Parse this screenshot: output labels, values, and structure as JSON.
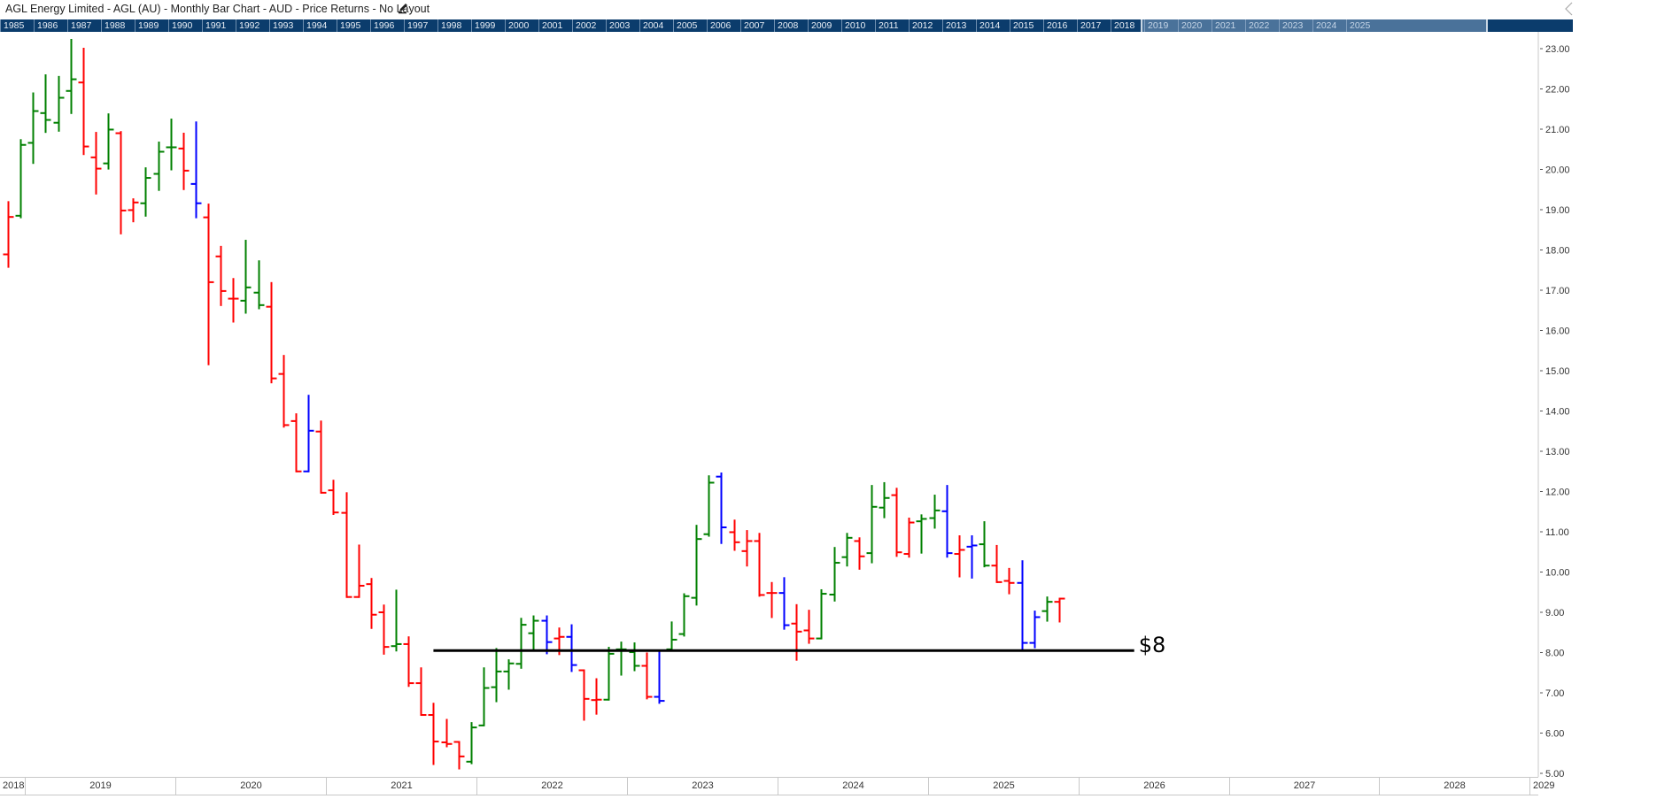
{
  "header": {
    "title": "AGL Energy Limited - AGL (AU) - Monthly Bar Chart - AUD - Price Returns - No Layout",
    "edit_icon": "pencil-icon",
    "collapse_icon": "chevron-left-icon"
  },
  "navigator": {
    "years": [
      "1985",
      "1986",
      "1987",
      "1988",
      "1989",
      "1990",
      "1991",
      "1992",
      "1993",
      "1994",
      "1995",
      "1996",
      "1997",
      "1998",
      "1999",
      "2000",
      "2001",
      "2002",
      "2003",
      "2004",
      "2005",
      "2006",
      "2007",
      "2008",
      "2009",
      "2010",
      "2011",
      "2012",
      "2013",
      "2014",
      "2015",
      "2016",
      "2017",
      "2018",
      "2019",
      "2020",
      "2021",
      "2022",
      "2023",
      "2024",
      "2025"
    ],
    "window": {
      "from": 2018.9,
      "to": 2029.1
    },
    "background": "#0b3c6c"
  },
  "colors": {
    "g": "#008000",
    "r": "#ff0000",
    "b": "#0000ff",
    "annotation": "#000000"
  },
  "chart_data": {
    "type": "bar",
    "style": "ohlc",
    "frequency": "monthly",
    "currency": "AUD",
    "categories": [
      "2018-11",
      "2018-12",
      "2019-01",
      "2019-02",
      "2019-03",
      "2019-04",
      "2019-05",
      "2019-06",
      "2019-07",
      "2019-08",
      "2019-09",
      "2019-10",
      "2019-11",
      "2019-12",
      "2020-01",
      "2020-02",
      "2020-03",
      "2020-04",
      "2020-05",
      "2020-06",
      "2020-07",
      "2020-08",
      "2020-09",
      "2020-10",
      "2020-11",
      "2020-12",
      "2021-01",
      "2021-02",
      "2021-03",
      "2021-04",
      "2021-05",
      "2021-06",
      "2021-07",
      "2021-08",
      "2021-09",
      "2021-10",
      "2021-11",
      "2021-12",
      "2022-01",
      "2022-02",
      "2022-03",
      "2022-04",
      "2022-05",
      "2022-06",
      "2022-07",
      "2022-08",
      "2022-09",
      "2022-10",
      "2022-11",
      "2022-12",
      "2023-01",
      "2023-02",
      "2023-03",
      "2023-04",
      "2023-05",
      "2023-06",
      "2023-07",
      "2023-08",
      "2023-09",
      "2023-10",
      "2023-11",
      "2023-12",
      "2024-01",
      "2024-02",
      "2024-03",
      "2024-04",
      "2024-05",
      "2024-06",
      "2024-07",
      "2024-08",
      "2024-09",
      "2024-10",
      "2024-11",
      "2024-12",
      "2025-01",
      "2025-02",
      "2025-03",
      "2025-04",
      "2025-05",
      "2025-06",
      "2025-07",
      "2025-08",
      "2025-09",
      "2025-10",
      "2025-11"
    ],
    "open": [
      17.89,
      18.85,
      20.66,
      21.4,
      21.16,
      21.95,
      22.16,
      20.3,
      20.15,
      20.9,
      18.99,
      19.16,
      19.89,
      20.55,
      20.52,
      19.64,
      18.81,
      17.84,
      16.79,
      16.74,
      16.94,
      16.59,
      14.92,
      13.75,
      12.5,
      13.49,
      12.03,
      11.47,
      9.38,
      9.7,
      9.0,
      8.16,
      8.21,
      7.24,
      6.45,
      5.77,
      5.78,
      5.29,
      6.19,
      7.14,
      7.53,
      7.72,
      8.48,
      8.79,
      8.35,
      8.39,
      7.56,
      6.82,
      6.83,
      8.08,
      8.01,
      7.67,
      6.9,
      8.08,
      8.46,
      9.36,
      10.94,
      12.37,
      10.99,
      10.52,
      10.77,
      9.48,
      9.48,
      8.72,
      8.55,
      8.35,
      9.44,
      10.37,
      10.77,
      10.47,
      11.6,
      11.91,
      10.45,
      11.26,
      11.34,
      11.51,
      10.45,
      10.63,
      10.69,
      10.16,
      9.78,
      9.73,
      8.24,
      9.03,
      9.26
    ],
    "high": [
      19.19,
      20.73,
      21.89,
      22.34,
      22.3,
      23.22,
      23.0,
      20.91,
      21.37,
      20.93,
      19.26,
      20.03,
      20.67,
      21.24,
      20.89,
      21.17,
      19.13,
      18.08,
      17.28,
      18.23,
      17.72,
      17.18,
      15.37,
      13.92,
      14.38,
      13.74,
      12.27,
      11.96,
      10.66,
      9.83,
      9.17,
      9.54,
      8.38,
      7.61,
      6.73,
      6.33,
      5.78,
      6.25,
      7.61,
      8.09,
      7.81,
      8.84,
      8.9,
      8.9,
      8.6,
      8.68,
      7.56,
      7.34,
      8.12,
      8.25,
      8.23,
      7.98,
      8.02,
      8.75,
      9.45,
      11.15,
      12.38,
      12.45,
      11.28,
      11.02,
      10.95,
      9.73,
      9.85,
      9.18,
      9.04,
      9.55,
      10.6,
      10.95,
      10.84,
      12.14,
      12.21,
      12.07,
      11.33,
      11.41,
      11.9,
      12.14,
      10.89,
      10.89,
      11.24,
      10.65,
      10.08,
      10.27,
      9.02,
      9.37,
      9.34
    ],
    "low": [
      17.58,
      18.81,
      20.16,
      20.93,
      20.96,
      21.4,
      20.38,
      19.4,
      20.02,
      18.41,
      18.71,
      18.85,
      19.49,
      20.0,
      19.51,
      18.81,
      15.16,
      16.63,
      16.22,
      16.44,
      16.55,
      14.71,
      13.61,
      12.5,
      12.5,
      11.97,
      11.44,
      9.38,
      9.38,
      8.61,
      7.97,
      8.05,
      7.17,
      6.45,
      5.23,
      5.67,
      5.12,
      5.25,
      6.19,
      6.79,
      7.1,
      7.62,
      8.05,
      7.98,
      7.96,
      7.54,
      6.33,
      6.48,
      6.83,
      7.45,
      7.56,
      6.86,
      6.75,
      8.08,
      8.42,
      9.19,
      10.9,
      10.72,
      10.55,
      10.16,
      9.41,
      8.88,
      8.59,
      7.82,
      8.24,
      8.35,
      9.29,
      10.16,
      10.08,
      10.24,
      11.36,
      10.4,
      10.38,
      10.48,
      11.1,
      10.38,
      9.89,
      9.86,
      10.14,
      9.75,
      9.47,
      8.05,
      8.13,
      8.79,
      8.77
    ],
    "close": [
      18.82,
      20.61,
      21.45,
      21.23,
      21.78,
      22.24,
      20.57,
      20.02,
      20.99,
      18.98,
      19.18,
      19.79,
      20.44,
      20.55,
      19.97,
      19.16,
      17.2,
      16.98,
      16.79,
      17.07,
      16.63,
      14.81,
      13.65,
      12.5,
      13.51,
      11.97,
      11.48,
      9.38,
      9.66,
      8.94,
      8.14,
      8.21,
      7.24,
      6.45,
      5.79,
      5.73,
      5.42,
      6.14,
      7.12,
      7.53,
      7.73,
      8.69,
      8.79,
      8.26,
      8.39,
      7.69,
      6.85,
      6.83,
      7.97,
      8.08,
      7.67,
      6.9,
      6.8,
      8.32,
      9.4,
      10.82,
      12.22,
      11.11,
      10.74,
      10.77,
      9.43,
      9.48,
      8.68,
      8.52,
      8.35,
      9.46,
      10.23,
      10.85,
      10.39,
      11.62,
      11.84,
      10.49,
      11.23,
      11.32,
      11.53,
      10.47,
      10.55,
      10.66,
      10.16,
      9.75,
      9.73,
      8.24,
      8.88,
      9.26,
      9.34
    ],
    "bar_colors": [
      "r",
      "g",
      "g",
      "g",
      "g",
      "g",
      "r",
      "r",
      "g",
      "r",
      "r",
      "g",
      "g",
      "g",
      "r",
      "b",
      "r",
      "r",
      "r",
      "g",
      "g",
      "r",
      "r",
      "r",
      "b",
      "r",
      "r",
      "r",
      "r",
      "r",
      "r",
      "g",
      "r",
      "r",
      "r",
      "r",
      "r",
      "g",
      "g",
      "g",
      "g",
      "g",
      "g",
      "b",
      "r",
      "b",
      "r",
      "r",
      "g",
      "g",
      "g",
      "r",
      "b",
      "g",
      "g",
      "g",
      "g",
      "b",
      "r",
      "r",
      "r",
      "r",
      "b",
      "r",
      "r",
      "g",
      "g",
      "g",
      "r",
      "g",
      "g",
      "r",
      "r",
      "g",
      "g",
      "b",
      "r",
      "b",
      "g",
      "r",
      "r",
      "b",
      "b",
      "g",
      "r"
    ],
    "y_ticks": [
      "5.00",
      "6.00",
      "7.00",
      "8.00",
      "9.00",
      "10.00",
      "11.00",
      "12.00",
      "13.00",
      "14.00",
      "15.00",
      "16.00",
      "17.00",
      "18.00",
      "19.00",
      "20.00",
      "21.00",
      "22.00",
      "23.00"
    ],
    "ylim": [
      5,
      23
    ],
    "x_tick_labels": [
      "2018",
      "2019",
      "2020",
      "2021",
      "2022",
      "2023",
      "2024",
      "2025",
      "2026",
      "2027",
      "2028",
      "2029"
    ],
    "axis_position": "right",
    "grid": false,
    "annotations": [
      {
        "type": "horizontal-line",
        "price": 8.05,
        "from": "2021-09",
        "to": "2026-05",
        "label": "$8"
      }
    ]
  }
}
